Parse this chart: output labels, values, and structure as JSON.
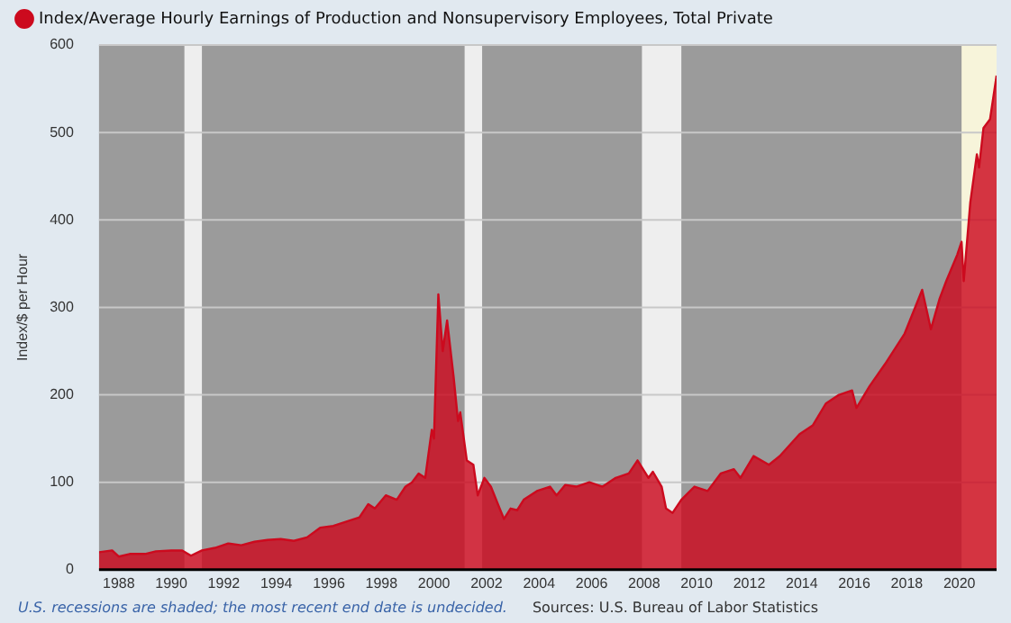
{
  "chart_data": {
    "type": "area",
    "ylabel": "Index/$ per Hour",
    "legend": "top left",
    "grid": "y",
    "annotations": [
      "U.S. recessions are shaded; the most recent end date is undecided.",
      "Sources: U.S. Bureau of Labor Statistics"
    ],
    "xlim": [
      "1987-04",
      "2021-06"
    ],
    "xticks": [
      "1988",
      "1990",
      "1992",
      "1994",
      "1996",
      "1998",
      "2000",
      "2002",
      "2004",
      "2006",
      "2008",
      "2010",
      "2012",
      "2014",
      "2016",
      "2018",
      "2020"
    ],
    "ylim": [
      0,
      600
    ],
    "yticks": [
      0,
      100,
      200,
      300,
      400,
      500,
      600
    ],
    "bands": [
      {
        "axis": "x",
        "from": "1990-07",
        "to": "1991-03",
        "color": "#eeeeee"
      },
      {
        "axis": "x",
        "from": "2001-03",
        "to": "2001-11",
        "color": "#eeeeee"
      },
      {
        "axis": "x",
        "from": "2007-12",
        "to": "2009-06",
        "color": "#eeeeee"
      },
      {
        "axis": "x",
        "from": "2020-02",
        "to": "2021-06",
        "color": "#f7f4da"
      }
    ],
    "x": [
      "1987-04",
      "1987-10",
      "1988-01",
      "1988-06",
      "1989-01",
      "1989-06",
      "1990-01",
      "1990-06",
      "1990-10",
      "1991-03",
      "1991-09",
      "1992-03",
      "1992-09",
      "1993-03",
      "1993-09",
      "1994-03",
      "1994-09",
      "1995-03",
      "1995-09",
      "1996-03",
      "1996-09",
      "1997-03",
      "1997-07",
      "1997-10",
      "1998-03",
      "1998-08",
      "1998-12",
      "1999-03",
      "1999-06",
      "1999-09",
      "1999-12",
      "2000-01",
      "2000-03",
      "2000-05",
      "2000-07",
      "2000-10",
      "2000-12",
      "2001-01",
      "2001-04",
      "2001-07",
      "2001-09",
      "2001-12",
      "2002-03",
      "2002-07",
      "2002-09",
      "2002-12",
      "2003-03",
      "2003-06",
      "2003-12",
      "2004-06",
      "2004-09",
      "2005-01",
      "2005-06",
      "2005-12",
      "2006-06",
      "2006-12",
      "2007-06",
      "2007-10",
      "2008-03",
      "2008-05",
      "2008-09",
      "2008-11",
      "2009-02",
      "2009-06",
      "2009-12",
      "2010-06",
      "2010-12",
      "2011-06",
      "2011-09",
      "2012-03",
      "2012-10",
      "2013-03",
      "2013-12",
      "2014-06",
      "2014-12",
      "2015-06",
      "2015-12",
      "2016-02",
      "2016-08",
      "2017-03",
      "2017-12",
      "2018-08",
      "2018-12",
      "2019-04",
      "2019-07",
      "2019-12",
      "2020-02",
      "2020-03",
      "2020-06",
      "2020-09",
      "2020-10",
      "2020-12",
      "2021-03",
      "2021-06"
    ],
    "series": [
      {
        "name": "Index/Average Hourly Earnings of Production and Nonsupervisory Employees, Total Private",
        "color": "#cc0a1e",
        "values": [
          20,
          22,
          15,
          18,
          18,
          21,
          22,
          22,
          16,
          22,
          25,
          30,
          28,
          32,
          34,
          35,
          33,
          37,
          48,
          50,
          55,
          60,
          75,
          70,
          85,
          80,
          95,
          100,
          110,
          105,
          160,
          150,
          315,
          250,
          285,
          220,
          170,
          180,
          125,
          120,
          85,
          105,
          95,
          70,
          58,
          70,
          68,
          80,
          90,
          95,
          85,
          97,
          95,
          100,
          95,
          105,
          110,
          125,
          105,
          112,
          95,
          70,
          65,
          80,
          95,
          90,
          110,
          115,
          105,
          130,
          120,
          130,
          155,
          165,
          190,
          200,
          205,
          185,
          210,
          235,
          270,
          320,
          275,
          310,
          330,
          360,
          375,
          330,
          420,
          475,
          460,
          505,
          515,
          565
        ]
      }
    ]
  }
}
